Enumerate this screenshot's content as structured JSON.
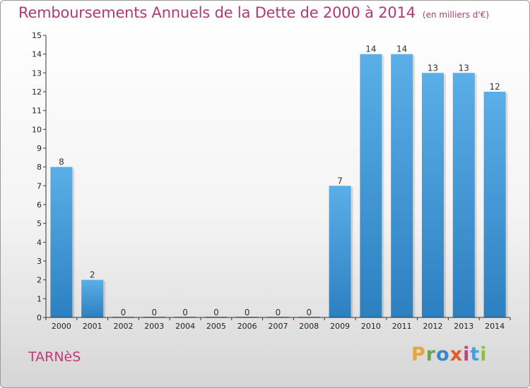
{
  "header": {
    "title": "Remboursements Annuels de la Dette de 2000 à 2014",
    "unit": "(en milliers d'€)"
  },
  "footer": {
    "commune": "TARNèS",
    "logo": "Proxiti",
    "logo_colors": [
      "#e8a53a",
      "#6aa84f",
      "#3b86c6",
      "#e05a2a",
      "#c93d86",
      "#4a9fd8",
      "#8fbf3e"
    ]
  },
  "colors": {
    "bar_light": "#5aafe8",
    "bar_dark": "#2c80c0",
    "axis": "#333333"
  },
  "chart_data": {
    "type": "bar",
    "title": "Remboursements Annuels de la Dette de 2000 à 2014",
    "xlabel": "",
    "ylabel": "",
    "categories": [
      "2000",
      "2001",
      "2002",
      "2003",
      "2004",
      "2005",
      "2006",
      "2007",
      "2008",
      "2009",
      "2010",
      "2011",
      "2012",
      "2013",
      "2014"
    ],
    "values": [
      8,
      2,
      0,
      0,
      0,
      0,
      0,
      0,
      0,
      7,
      14,
      14,
      13,
      13,
      12
    ],
    "data_labels": [
      "8",
      "2",
      "0",
      "0",
      "0",
      "0",
      "0",
      "0",
      "0",
      "7",
      "14",
      "14",
      "13",
      "13",
      "12"
    ],
    "ylim": [
      0,
      15
    ],
    "yticks": [
      "0",
      "1",
      "2",
      "3",
      "4",
      "5",
      "6",
      "7",
      "8",
      "9",
      "10",
      "11",
      "12",
      "13",
      "14",
      "15"
    ],
    "grid": false,
    "legend": "none"
  }
}
